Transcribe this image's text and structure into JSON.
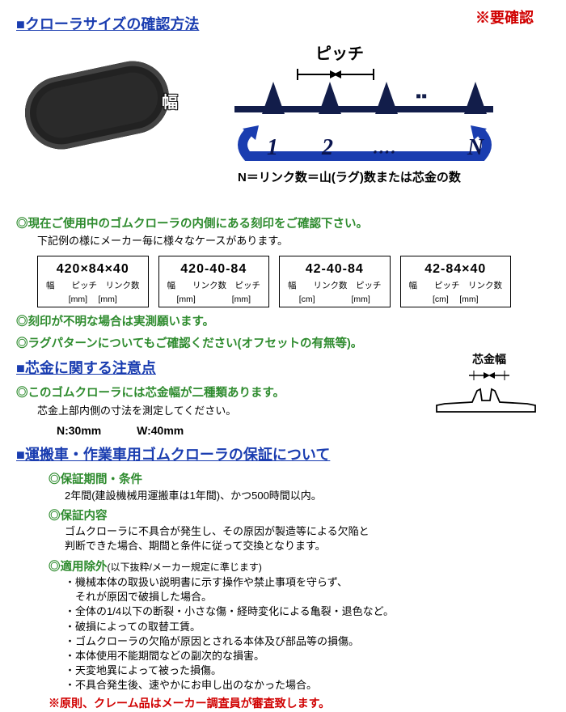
{
  "section1": {
    "title": "■クローラサイズの確認方法",
    "warning": "※要確認",
    "haba_label": "幅",
    "pitch_label": "ピッチ",
    "lug_numbers": {
      "n1": "1",
      "n2": "2",
      "dots": "‥‥",
      "nN": "N"
    },
    "n_caption": "N＝リンク数＝山(ラグ)数または芯金の数"
  },
  "confirm": {
    "bullet1": "◎現在ご使用中のゴムクローラの内側にある刻印をご確認下さい。",
    "sub1": "下記例の様にメーカー毎に様々なケースがあります。",
    "boxes": [
      {
        "main": "420×84×40",
        "sub": "幅　　ピッチ　リンク数",
        "unit": "[mm] 　[mm]"
      },
      {
        "main": "420-40-84",
        "sub": "幅　　リンク数　ピッチ",
        "unit": "[mm] 　　　　[mm]"
      },
      {
        "main": "42-40-84",
        "sub": "幅　　リンク数　ピッチ",
        "unit": "[cm] 　　　　[mm]"
      },
      {
        "main": "42-84×40",
        "sub": "幅　　ピッチ　リンク数",
        "unit": "[cm] 　[mm]"
      }
    ],
    "bullet2": "◎刻印が不明な場合は実測願います。",
    "bullet3": "◎ラグパターンについてもご確認ください(オフセットの有無等)。"
  },
  "core": {
    "title": "■芯金に関する注意点",
    "bullet": "◎このゴムクローラには芯金幅が二種類あります。",
    "sub": "芯金上部内側の寸法を測定してください。",
    "size_n": "N:30mm",
    "size_w": "W:40mm",
    "width_label": "芯金幅"
  },
  "warranty": {
    "title": "■運搬車・作業車用ゴムクローラの保証について",
    "period_h": "◎保証期間・条件",
    "period_body": "2年間(建設機械用運搬車は1年間)、かつ500時間以内。",
    "content_h": "◎保証内容",
    "content_body1": "ゴムクローラに不具合が発生し、その原因が製造等による欠陥と",
    "content_body2": "判断できた場合、期間と条件に従って交換となります。",
    "exclusion_h": "◎適用除外",
    "exclusion_note": "(以下抜粋/メーカー規定に準じます)",
    "exclusions": [
      "・機械本体の取扱い説明書に示す操作や禁止事項を守らず、",
      "　それが原因で破損した場合。",
      "・全体の1/4以下の断裂・小さな傷・経時変化による亀裂・退色など。",
      "・破損によっての取替工賃。",
      "・ゴムクローラの欠陥が原因とされる本体及び部品等の損傷。",
      "・本体使用不能期間などの副次的な損害。",
      "・天変地異によって被った損傷。",
      "・不具合発生後、速やかにお申し出のなかった場合。"
    ],
    "red_note": "※原則、クレーム品はメーカー調査員が審査致します。"
  },
  "colors": {
    "blue": "#1a3db0",
    "green": "#2e8b2e",
    "red": "#d00000",
    "navy": "#121d4a"
  }
}
